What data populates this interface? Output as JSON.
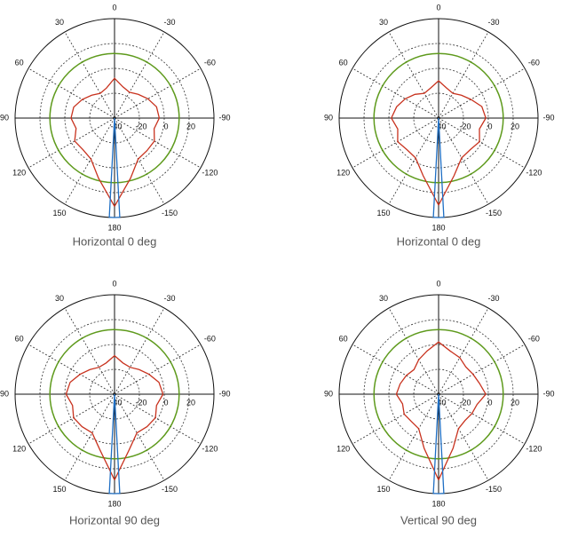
{
  "chart_data": [
    {
      "type": "polar",
      "title": "Horizontal 0 deg",
      "rlim": [
        -40,
        40
      ],
      "rticks": [
        -40,
        -20,
        0,
        20
      ],
      "thetaticks": [
        0,
        30,
        60,
        90,
        120,
        150,
        180,
        -150,
        -120,
        -90,
        -60,
        -30
      ],
      "reference": {
        "value": 12,
        "color": "#5e9a1c"
      },
      "series": [
        {
          "color": "#c8321e",
          "theta": [
            -180,
            -165,
            -150,
            -135,
            -120,
            -105,
            -90,
            -75,
            -60,
            -45,
            -30,
            -15,
            0,
            15,
            30,
            45,
            60,
            75,
            90,
            105,
            120,
            135,
            150,
            165,
            180
          ],
          "r": [
            31,
            10,
            -2,
            -3,
            -3,
            -7,
            -4,
            -5,
            -9,
            -13,
            -16,
            -14,
            -8,
            -15,
            -17,
            -14,
            -10,
            -6,
            -5,
            -8,
            -3,
            -4,
            -2,
            10,
            31
          ]
        },
        {
          "color": "#1f6fc4",
          "theta": [
            0,
            177,
            180,
            183,
            0
          ],
          "r": [
            -40,
            40,
            40,
            40,
            -40
          ]
        }
      ]
    },
    {
      "type": "polar",
      "title": "Horizontal 0 deg",
      "rlim": [
        -40,
        40
      ],
      "rticks": [
        -40,
        -20,
        0,
        20
      ],
      "thetaticks": [
        0,
        30,
        60,
        90,
        120,
        150,
        180,
        -150,
        -120,
        -90,
        -60,
        -30
      ],
      "reference": {
        "value": 12,
        "color": "#5e9a1c"
      },
      "series": [
        {
          "color": "#c8321e",
          "theta": [
            -180,
            -165,
            -150,
            -135,
            -120,
            -105,
            -90,
            -75,
            -60,
            -45,
            -30,
            -15,
            0,
            15,
            30,
            45,
            60,
            75,
            90,
            105,
            120,
            135,
            150,
            165,
            180
          ],
          "r": [
            30,
            8,
            -3,
            -4,
            -2,
            -6,
            -2,
            -4,
            -10,
            -14,
            -17,
            -15,
            -10,
            -15,
            -17,
            -13,
            -9,
            -5,
            -2,
            -6,
            -2,
            -4,
            -3,
            8,
            30
          ]
        },
        {
          "color": "#1f6fc4",
          "theta": [
            0,
            177,
            180,
            183,
            0
          ],
          "r": [
            -40,
            40,
            40,
            40,
            -40
          ]
        }
      ]
    },
    {
      "type": "polar",
      "title": "Horizontal 90 deg",
      "rlim": [
        -40,
        40
      ],
      "rticks": [
        -40,
        -20,
        0,
        20
      ],
      "thetaticks": [
        0,
        30,
        60,
        90,
        120,
        150,
        180,
        -150,
        -120,
        -90,
        -60,
        -30
      ],
      "reference": {
        "value": 12,
        "color": "#5e9a1c"
      },
      "series": [
        {
          "color": "#c8321e",
          "theta": [
            -180,
            -165,
            -150,
            -135,
            -120,
            -105,
            -90,
            -75,
            -60,
            -45,
            -30,
            -15,
            0,
            15,
            30,
            45,
            60,
            75,
            90,
            105,
            120,
            135,
            150,
            165,
            180
          ],
          "r": [
            29,
            6,
            -4,
            -3,
            -2,
            -5,
            -1,
            -3,
            -8,
            -12,
            -15,
            -14,
            -9,
            -14,
            -15,
            -12,
            -8,
            -3,
            -1,
            -5,
            -2,
            -3,
            -4,
            6,
            29
          ]
        },
        {
          "color": "#1f6fc4",
          "theta": [
            0,
            177,
            180,
            183,
            0
          ],
          "r": [
            -40,
            40,
            40,
            40,
            -40
          ]
        }
      ]
    },
    {
      "type": "polar",
      "title": "Vertical 90 deg",
      "rlim": [
        -40,
        40
      ],
      "rticks": [
        -40,
        -20,
        0,
        20
      ],
      "thetaticks": [
        0,
        30,
        60,
        90,
        120,
        150,
        180,
        -150,
        -120,
        -90,
        -60,
        -30
      ],
      "reference": {
        "value": 12,
        "color": "#5e9a1c"
      },
      "series": [
        {
          "color": "#c8321e",
          "theta": [
            -180,
            -165,
            -150,
            -135,
            -120,
            -105,
            -90,
            -75,
            -60,
            -45,
            -30,
            -15,
            0,
            15,
            30,
            45,
            60,
            75,
            90,
            105,
            120,
            135,
            150,
            165,
            180
          ],
          "r": [
            29,
            5,
            -8,
            -10,
            -9,
            -8,
            -2,
            -6,
            -8,
            -9,
            -6,
            -4,
            2,
            -4,
            -8,
            -12,
            -10,
            -8,
            -6,
            -10,
            -8,
            -9,
            -8,
            5,
            29
          ]
        },
        {
          "color": "#1f6fc4",
          "theta": [
            0,
            177,
            180,
            183,
            0
          ],
          "r": [
            -40,
            40,
            40,
            40,
            -40
          ]
        }
      ]
    }
  ]
}
